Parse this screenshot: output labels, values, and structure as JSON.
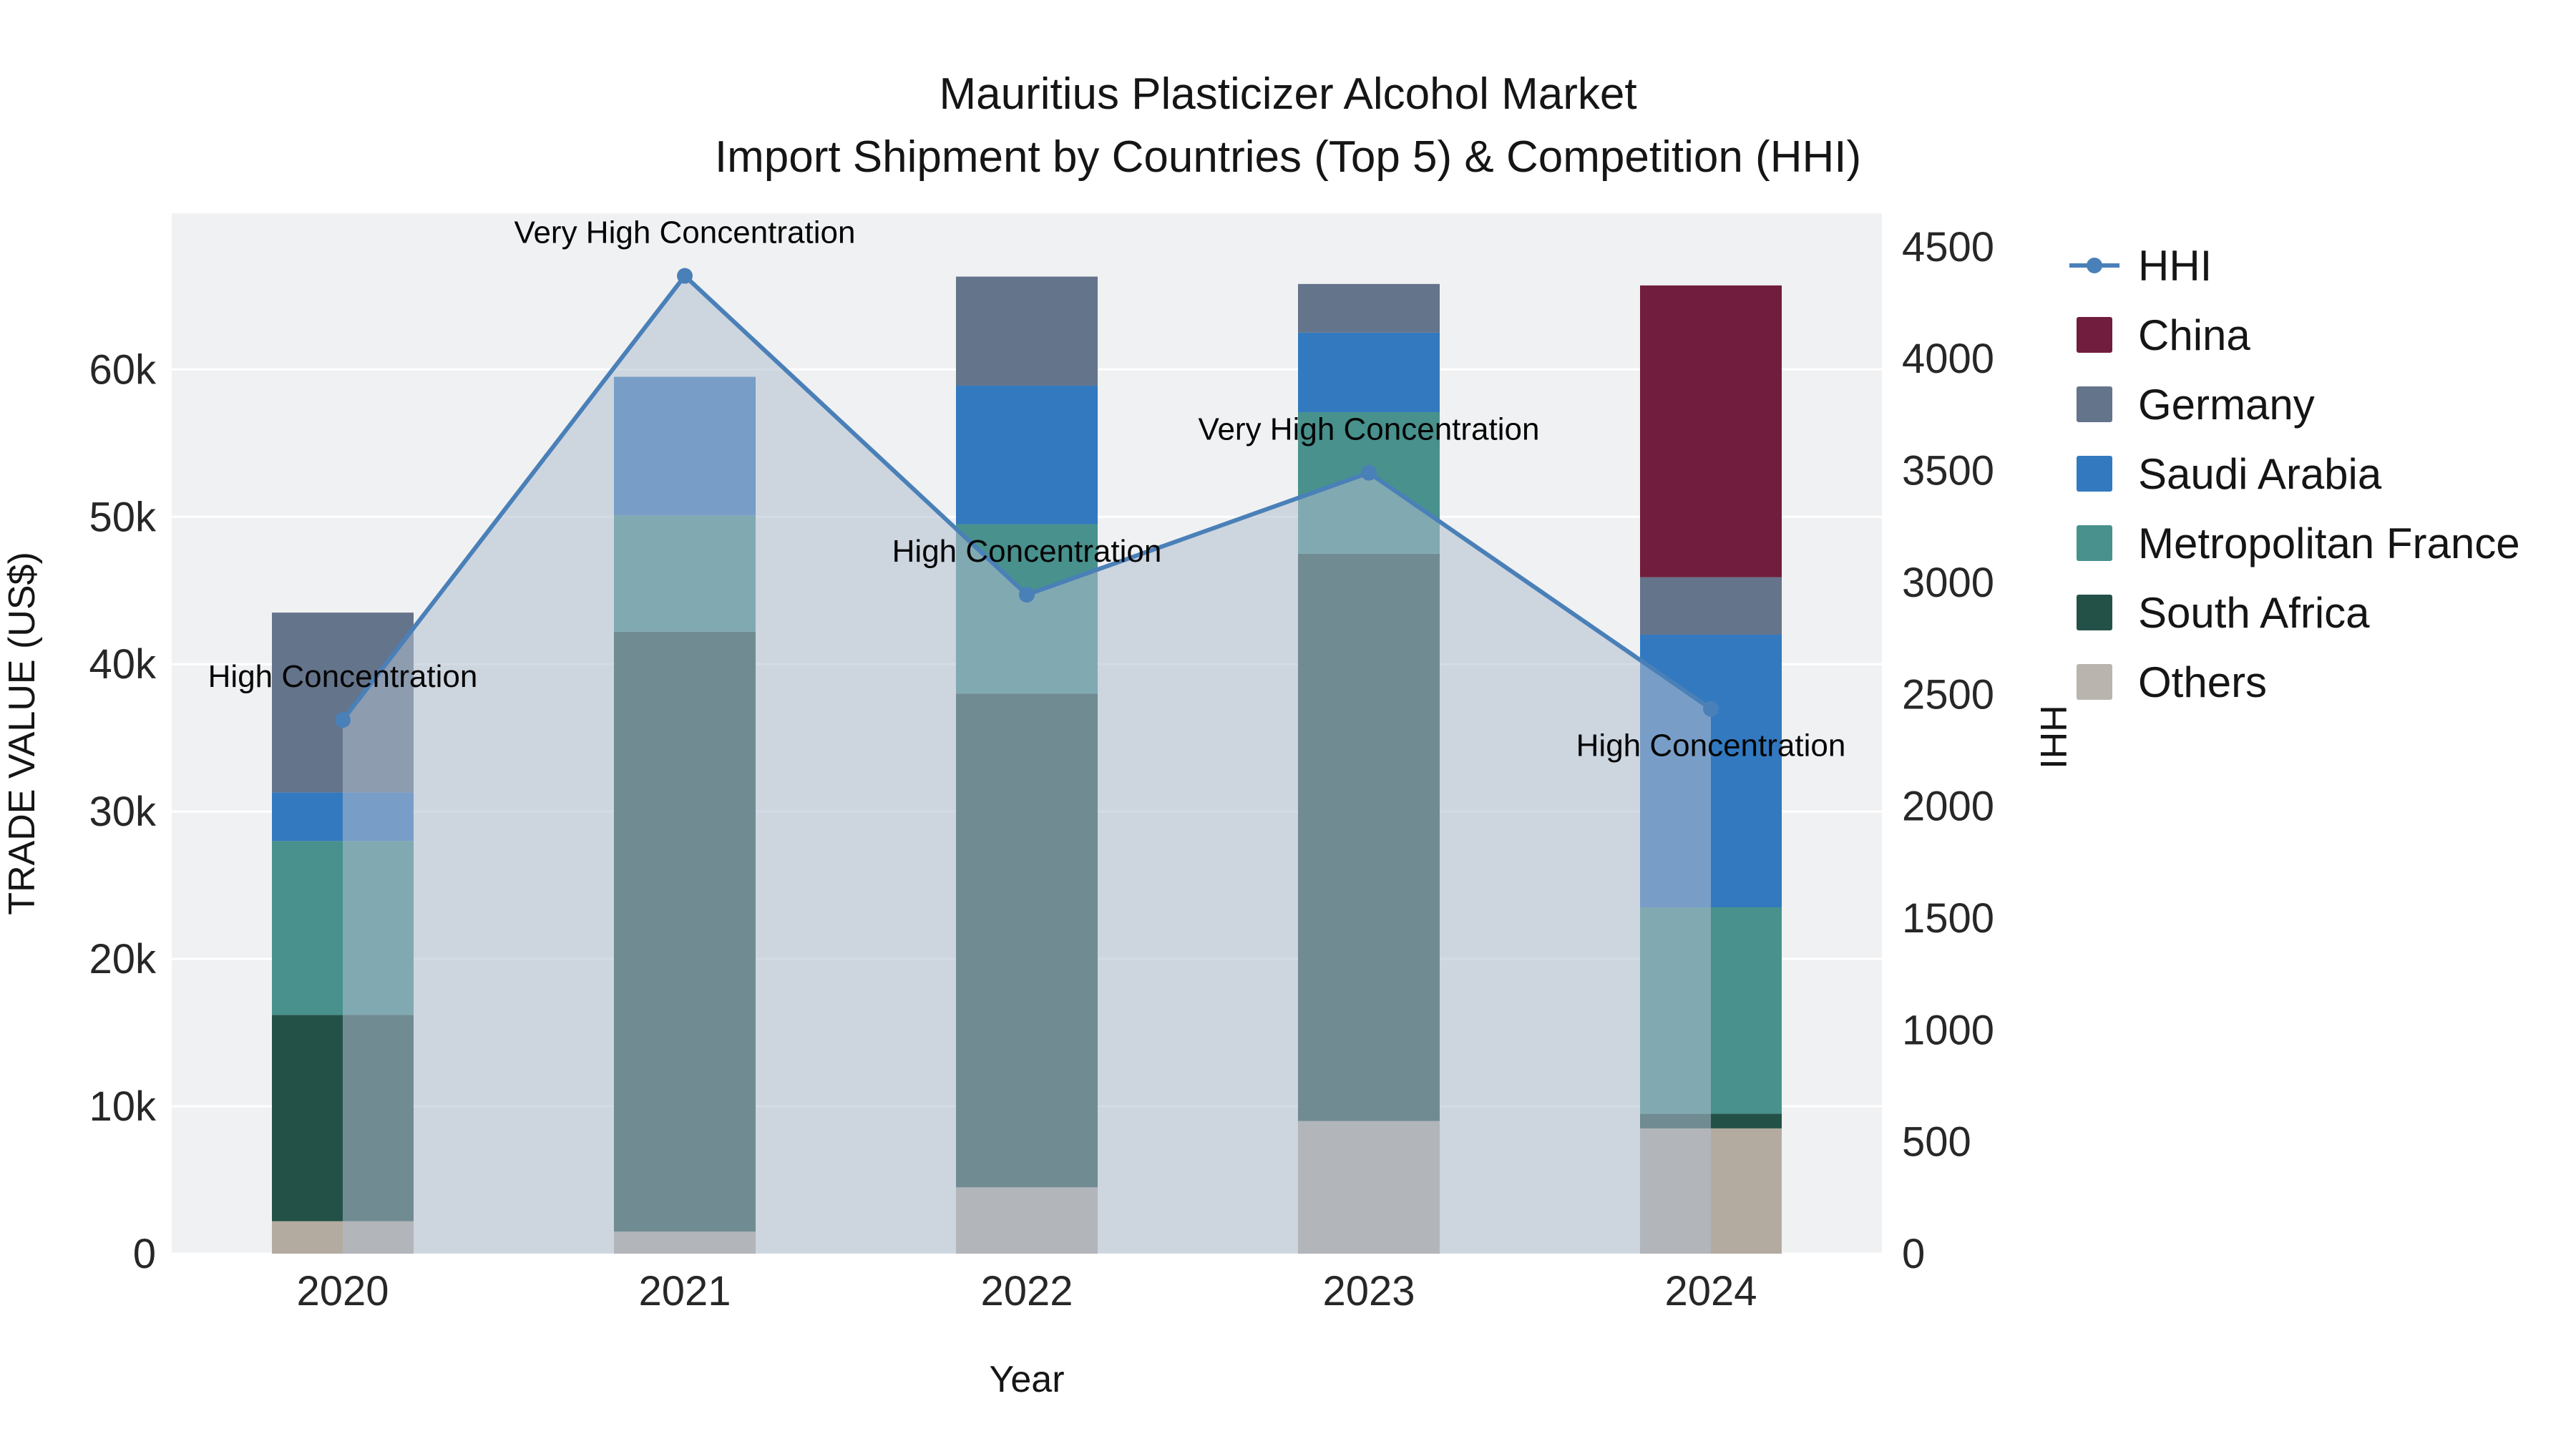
{
  "chart_data": {
    "type": "bar",
    "subtype": "stacked-bar-with-line",
    "title_line1": "Mauritius Plasticizer Alcohol Market",
    "title_line2": "Import Shipment by Countries (Top 5) & Competition (HHI)",
    "xlabel": "Year",
    "ylabel_left": "TRADE VALUE (US$)",
    "ylabel_right": "HHI",
    "categories": [
      "2020",
      "2021",
      "2022",
      "2023",
      "2024"
    ],
    "values_unit": "thousand US$",
    "series": [
      {
        "name": "China",
        "color": "#711d3d",
        "values": [
          0,
          0,
          0,
          0,
          19.8
        ]
      },
      {
        "name": "Germany",
        "color": "#64748b",
        "values": [
          12.2,
          0,
          7.4,
          3.3,
          3.9
        ]
      },
      {
        "name": "Saudi Arabia",
        "color": "#3379bf",
        "values": [
          3.3,
          9.4,
          9.4,
          5.4,
          18.5
        ]
      },
      {
        "name": "Metropolitan France",
        "color": "#48918d",
        "values": [
          11.8,
          7.9,
          11.5,
          9.6,
          14.0
        ]
      },
      {
        "name": "South Africa",
        "color": "#235148",
        "values": [
          14.0,
          40.7,
          33.5,
          38.5,
          1.0
        ]
      },
      {
        "name": "Others",
        "color": "#b3ab9f",
        "values": [
          2.2,
          1.5,
          4.5,
          9.0,
          8.5
        ]
      }
    ],
    "hhi": {
      "name": "HHI",
      "color": "#4a80b8",
      "area_fill": "rgba(177,189,208,0.55)",
      "values": [
        2385,
        4370,
        2945,
        3490,
        2435
      ]
    },
    "annotations": [
      {
        "year": "2020",
        "text": "High Concentration",
        "position": "above"
      },
      {
        "year": "2021",
        "text": "Very High Concentration",
        "position": "above"
      },
      {
        "year": "2022",
        "text": "High Concentration",
        "position": "above"
      },
      {
        "year": "2023",
        "text": "Very High Concentration",
        "position": "above"
      },
      {
        "year": "2024",
        "text": "High Concentration",
        "position": "below"
      }
    ],
    "y_left": {
      "min": 0,
      "max": 70.6,
      "ticks": [
        "0",
        "10k",
        "20k",
        "30k",
        "40k",
        "50k",
        "60k"
      ],
      "tick_values": [
        0,
        10,
        20,
        30,
        40,
        50,
        60
      ]
    },
    "y_right": {
      "min": 0,
      "max": 4650,
      "ticks": [
        "0",
        "500",
        "1000",
        "1500",
        "2000",
        "2500",
        "3000",
        "3500",
        "4000",
        "4500"
      ],
      "tick_values": [
        0,
        500,
        1000,
        1500,
        2000,
        2500,
        3000,
        3500,
        4000,
        4500
      ]
    },
    "legend": [
      {
        "label": "HHI",
        "type": "line",
        "color": "#4a80b8"
      },
      {
        "label": "China",
        "type": "swatch",
        "color": "#711d3d"
      },
      {
        "label": "Germany",
        "type": "swatch",
        "color": "#64748b"
      },
      {
        "label": "Saudi Arabia",
        "type": "swatch",
        "color": "#3379bf"
      },
      {
        "label": "Metropolitan France",
        "type": "swatch",
        "color": "#48918d"
      },
      {
        "label": "South Africa",
        "type": "swatch",
        "color": "#235148"
      },
      {
        "label": "Others",
        "type": "swatch",
        "color": "#b9b5ae"
      }
    ],
    "plot_bg": "#f0f1f2",
    "grid_color": "#ffffff"
  }
}
